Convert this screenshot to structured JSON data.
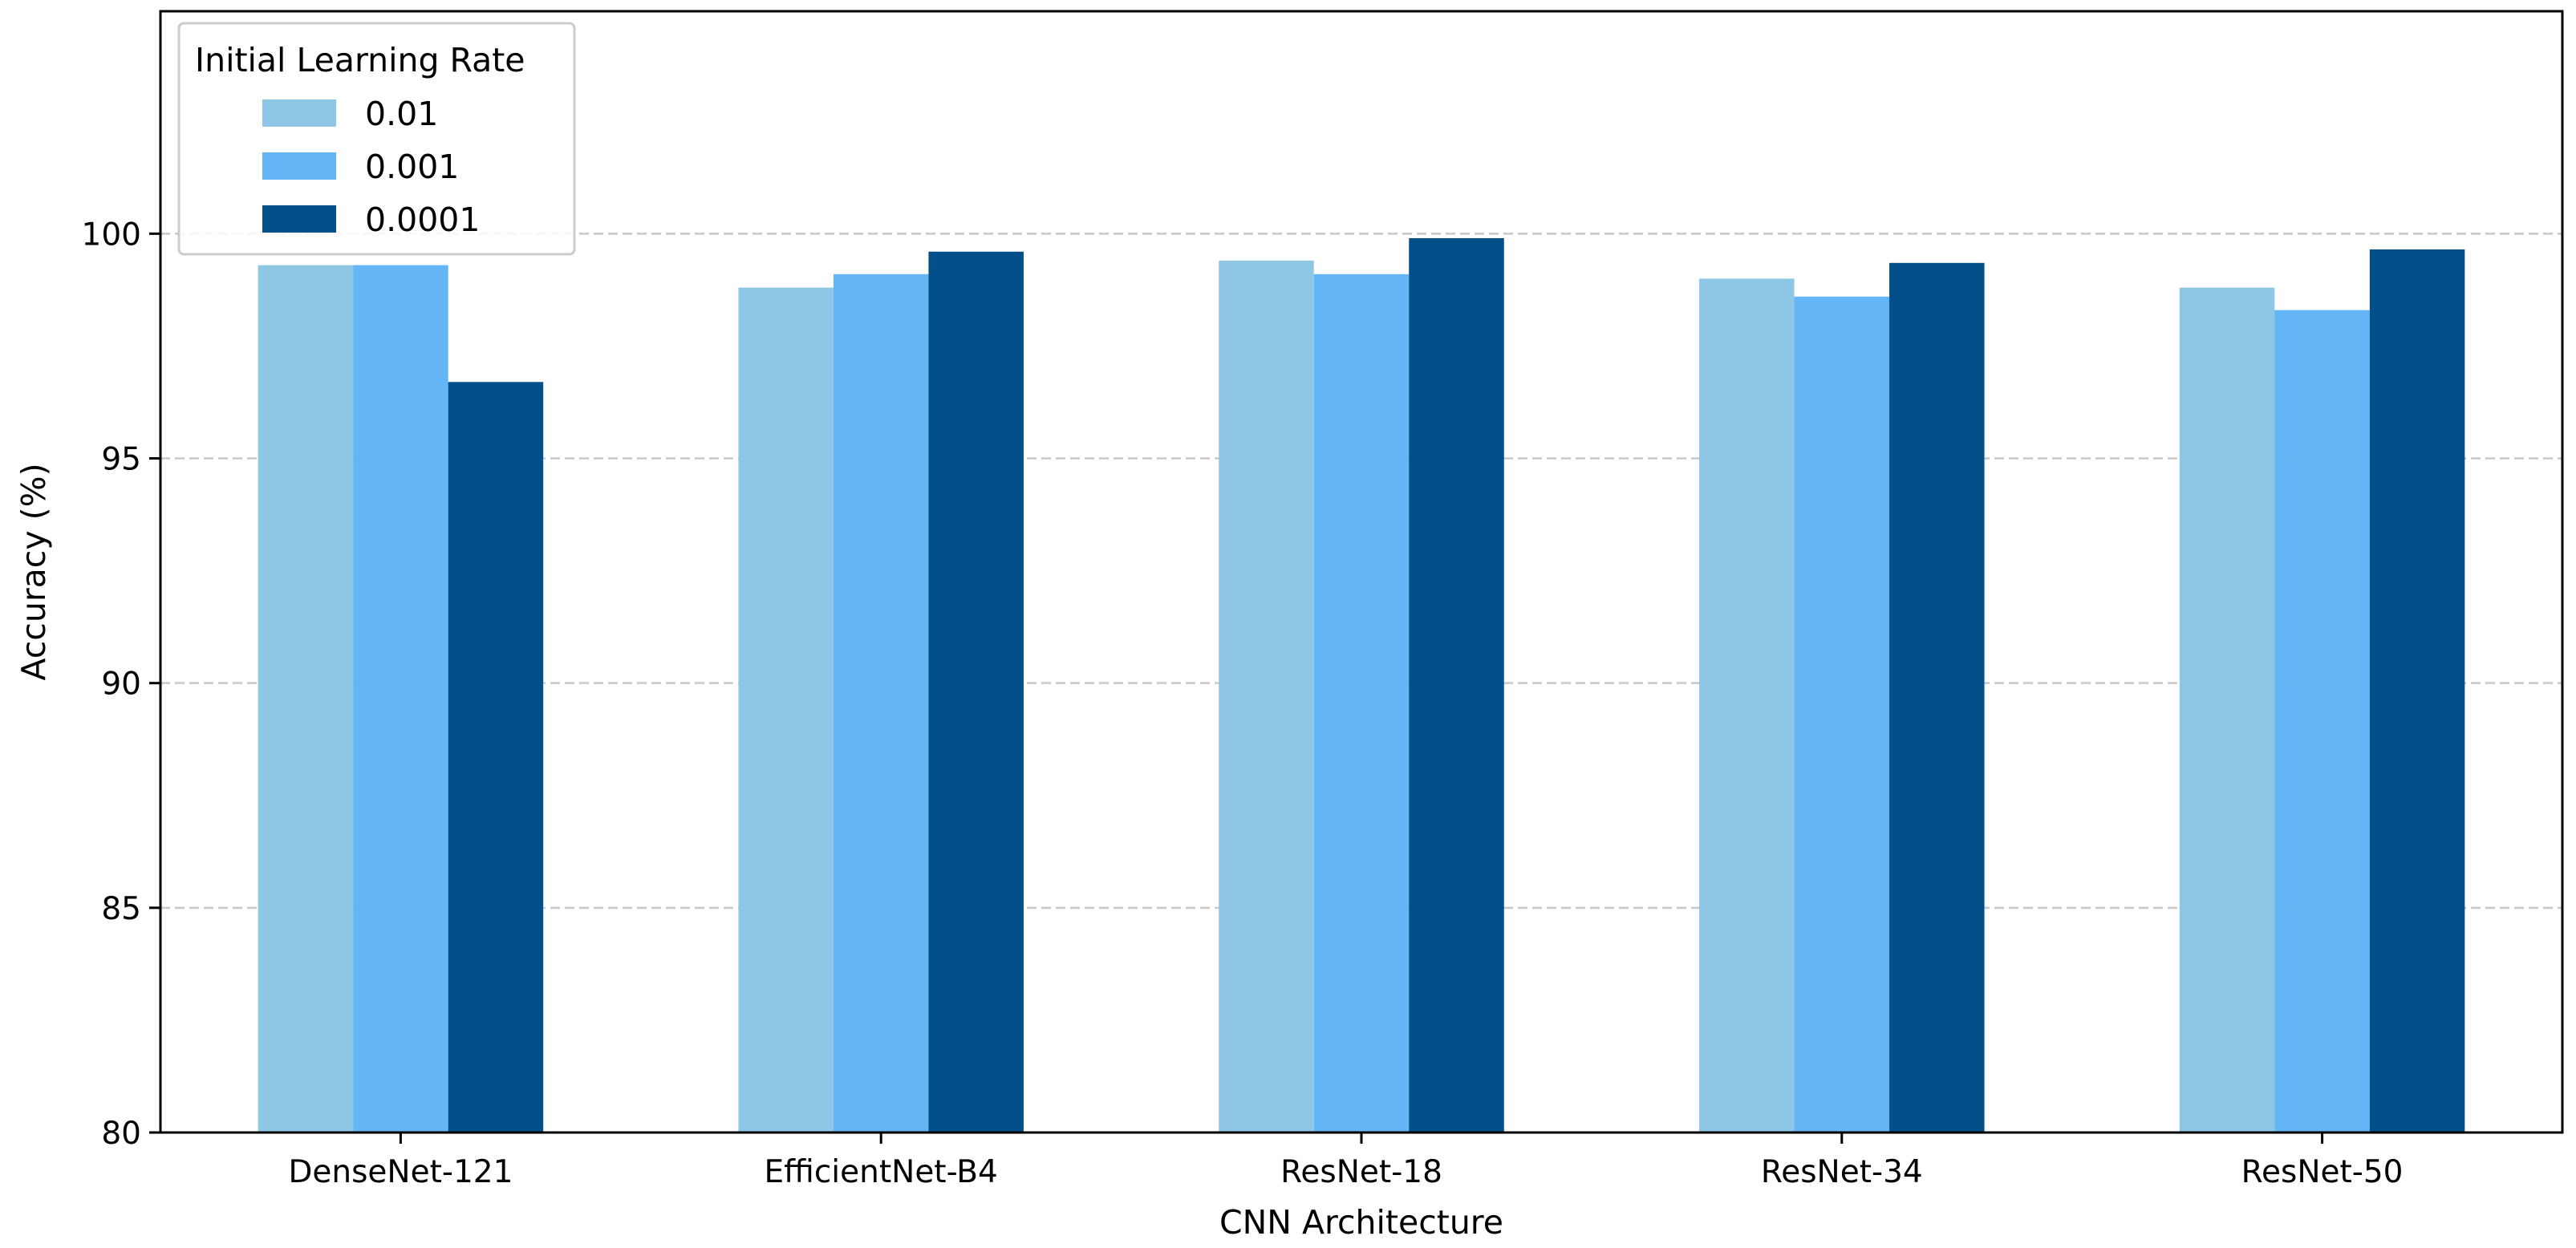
{
  "chart_data": {
    "type": "bar",
    "title": "",
    "xlabel": "CNN Architecture",
    "ylabel": "Accuracy (%)",
    "ylim": [
      80,
      104.95
    ],
    "yticks": [
      80,
      85,
      90,
      95,
      100
    ],
    "categories": [
      "DenseNet-121",
      "EfficientNet-B4",
      "ResNet-18",
      "ResNet-34",
      "ResNet-50"
    ],
    "series": [
      {
        "name": "0.01",
        "color": "#8ec7e6",
        "values": [
          99.3,
          98.8,
          99.4,
          99.0,
          98.8
        ]
      },
      {
        "name": "0.001",
        "color": "#64b5f5",
        "values": [
          99.3,
          99.1,
          99.1,
          98.6,
          98.3
        ]
      },
      {
        "name": "0.0001",
        "color": "#034f89",
        "values": [
          96.7,
          99.6,
          99.9,
          99.35,
          99.65
        ]
      }
    ],
    "legend": {
      "title": "Initial Learning Rate",
      "placement": "top-left"
    },
    "grid": {
      "y": true,
      "style": "dashed"
    }
  }
}
